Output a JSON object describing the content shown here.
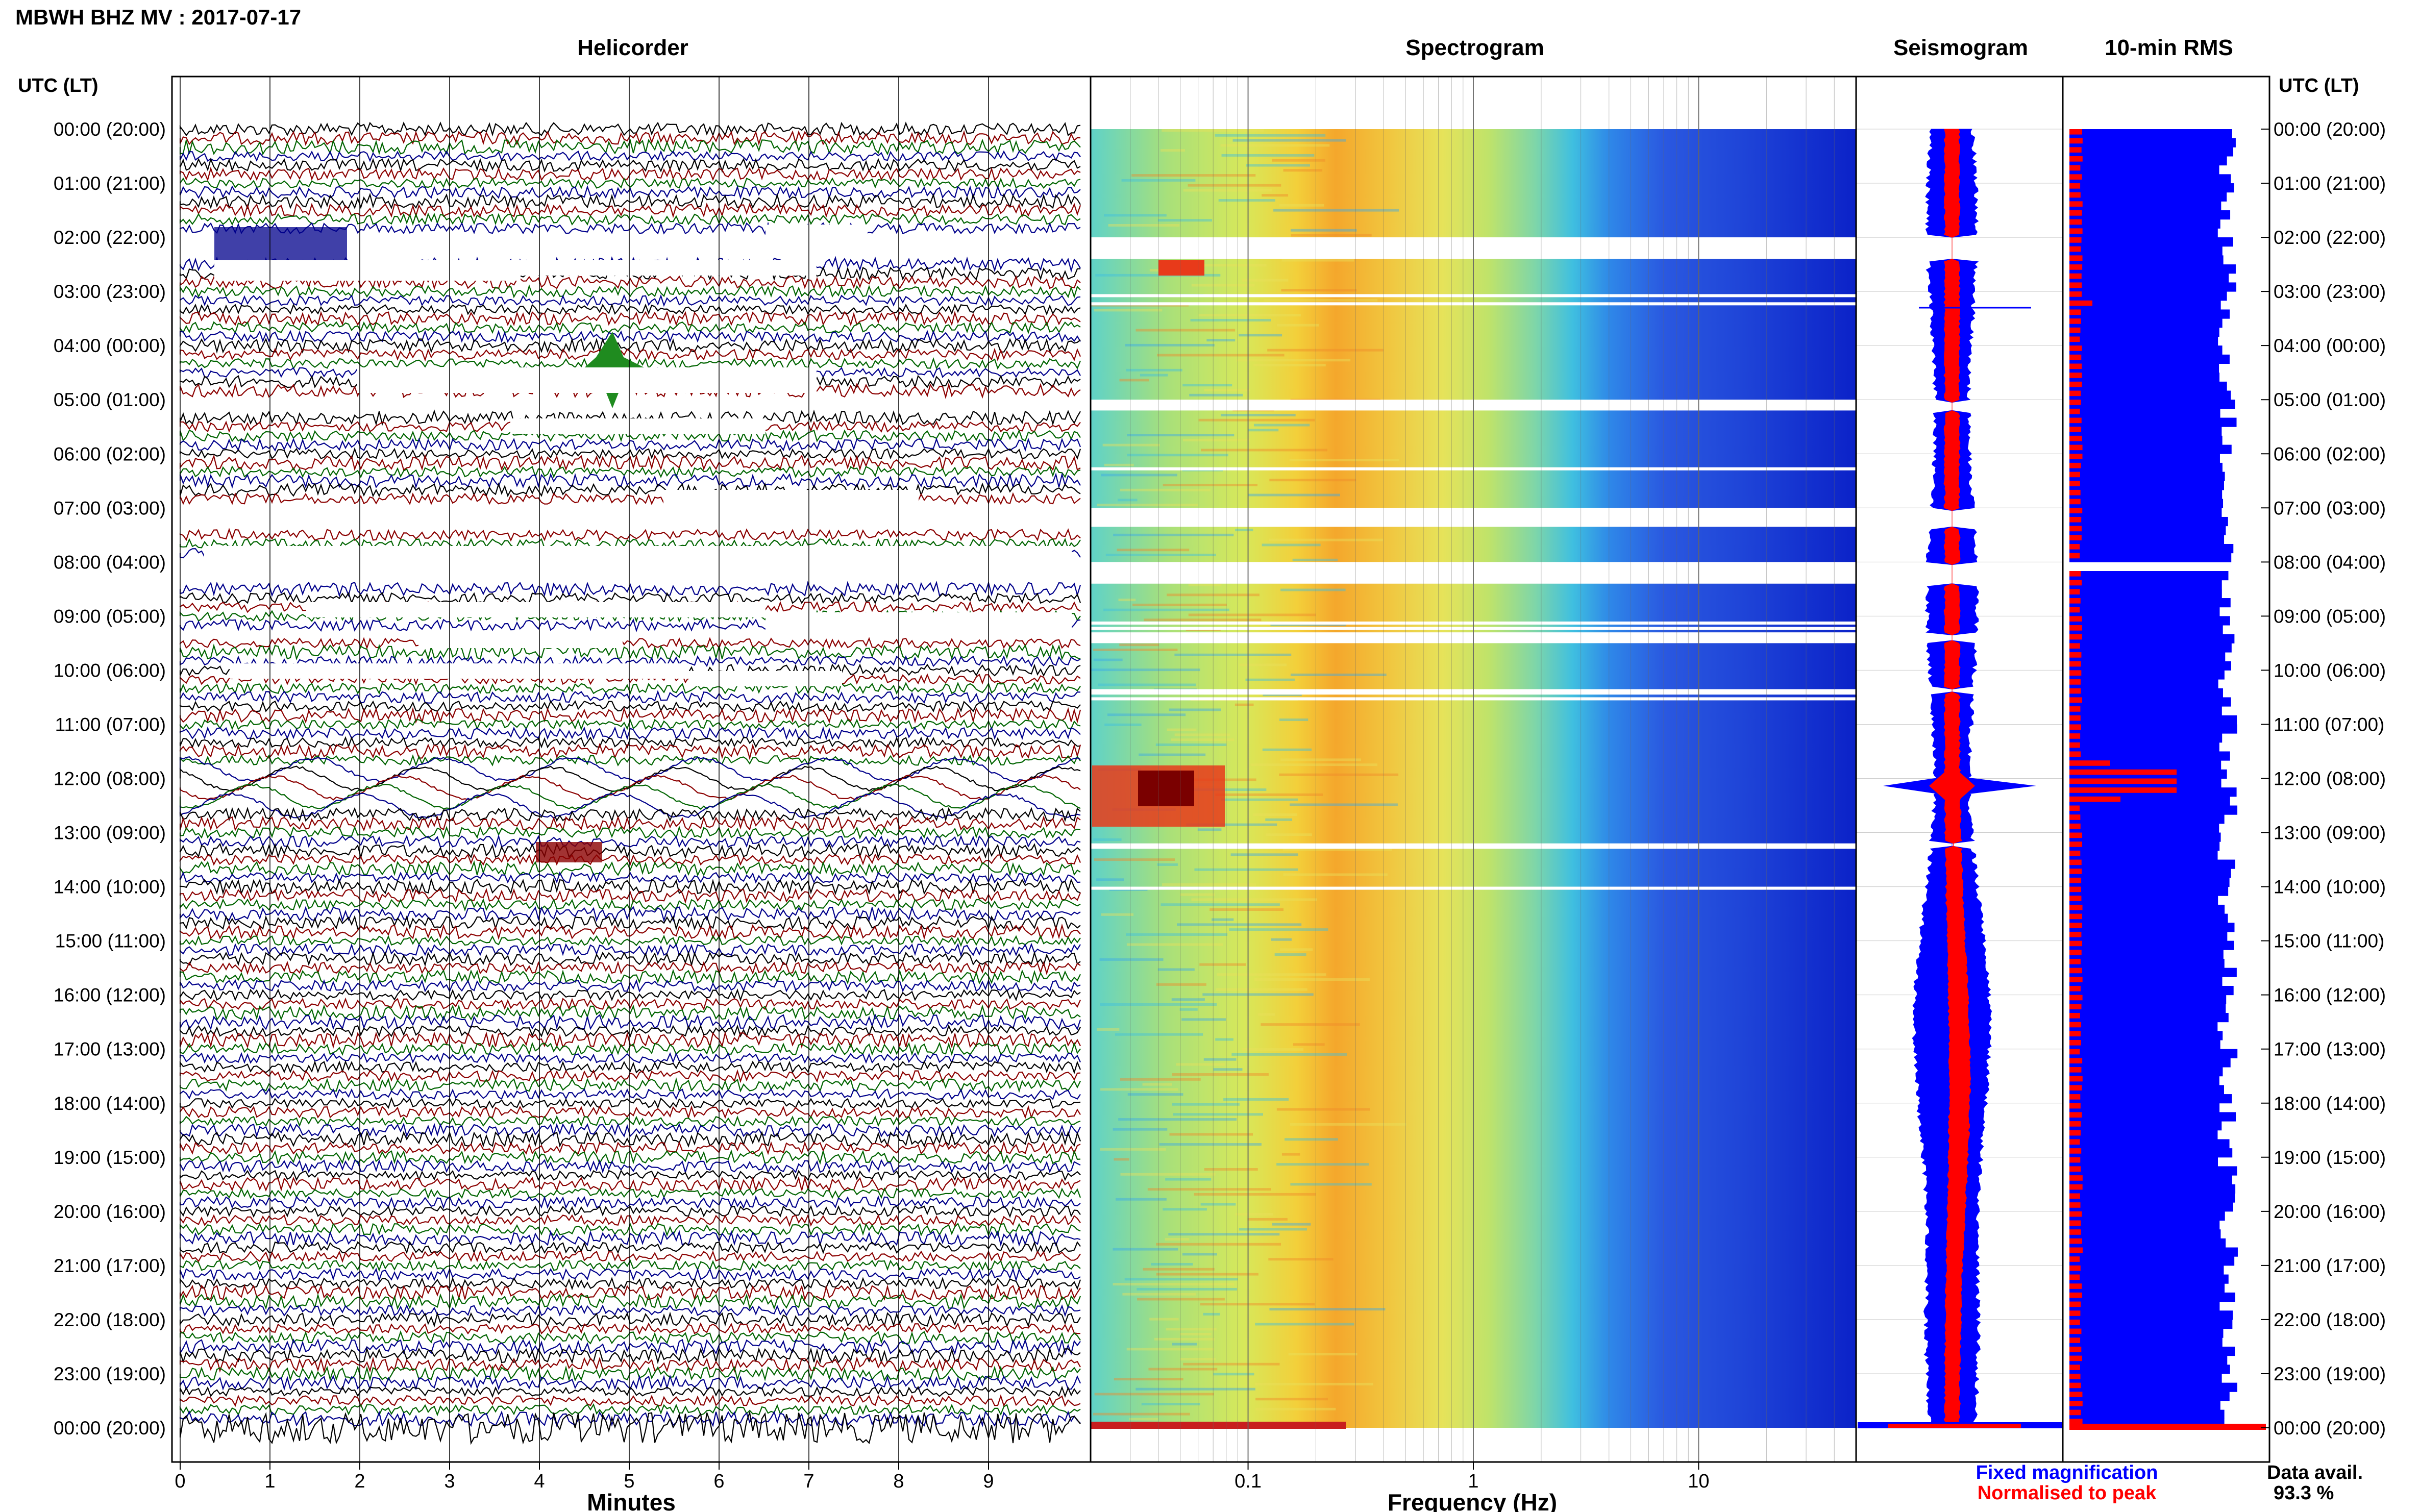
{
  "header": {
    "title": "MBWH BHZ MV : 2017-07-17",
    "utc_label_left": "UTC (LT)",
    "utc_label_right": "UTC (LT)"
  },
  "panels": {
    "helicorder": "Helicorder",
    "spectrogram": "Spectrogram",
    "seismogram": "Seismogram",
    "rms": "10-min RMS"
  },
  "axes": {
    "minutes_label": "Minutes",
    "frequency_label": "Frequency (Hz)",
    "minute_ticks": [
      "0",
      "1",
      "2",
      "3",
      "4",
      "5",
      "6",
      "7",
      "8",
      "9"
    ],
    "frequency_ticks": [
      "0.1",
      "1",
      "10"
    ]
  },
  "time_labels": [
    "00:00 (20:00)",
    "01:00 (21:00)",
    "02:00 (22:00)",
    "03:00 (23:00)",
    "04:00 (00:00)",
    "05:00 (01:00)",
    "06:00 (02:00)",
    "07:00 (03:00)",
    "08:00 (04:00)",
    "09:00 (05:00)",
    "10:00 (06:00)",
    "11:00 (07:00)",
    "12:00 (08:00)",
    "13:00 (09:00)",
    "14:00 (10:00)",
    "15:00 (11:00)",
    "16:00 (12:00)",
    "17:00 (13:00)",
    "18:00 (14:00)",
    "19:00 (15:00)",
    "20:00 (16:00)",
    "21:00 (17:00)",
    "22:00 (18:00)",
    "23:00 (19:00)",
    "00:00 (20:00)"
  ],
  "legend": {
    "fixed": "Fixed magnification",
    "normalised": "Normalised to peak",
    "data_avail_label": "Data avail.",
    "data_avail_value": "93.3 %"
  },
  "colors": {
    "fixed": "#0000ff",
    "normalised": "#ff0000",
    "trace_cycle": [
      "#000000",
      "#8b0000",
      "#006400",
      "#00008b"
    ]
  },
  "chart_data": {
    "type": "heatmap",
    "title": "MBWH BHZ MV : 2017-07-17",
    "panels": [
      "Helicorder",
      "Spectrogram",
      "Seismogram",
      "10-min RMS"
    ],
    "x_helicorder": {
      "label": "Minutes",
      "range": [
        0,
        10
      ]
    },
    "x_spectrogram": {
      "label": "Frequency (Hz)",
      "scale": "log",
      "range": [
        0.02,
        50
      ]
    },
    "y": {
      "label": "UTC (LT)",
      "range_hours": [
        0,
        24
      ]
    },
    "data_gaps_utc_hours": [
      [
        2.0,
        2.4
      ],
      [
        5.0,
        5.2
      ],
      [
        7.0,
        7.35
      ],
      [
        8.0,
        8.4
      ],
      [
        9.3,
        9.5
      ],
      [
        10.35,
        10.45
      ],
      [
        13.2,
        13.3
      ]
    ],
    "events_utc_hours": [
      4.4,
      12.0,
      13.35,
      24.0
    ],
    "data_availability_percent": 93.3
  }
}
